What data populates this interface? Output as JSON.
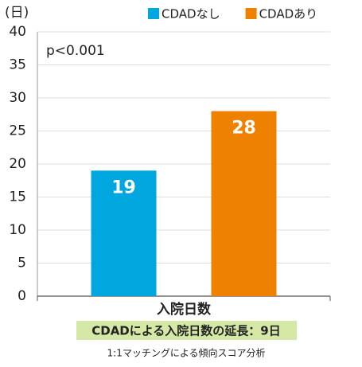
{
  "chart_data": {
    "type": "bar",
    "y_unit_label": "(日)",
    "annotation": "p<0.001",
    "categories": [
      "入院日数"
    ],
    "series": [
      {
        "name": "CDADなし",
        "color": "#00a7df",
        "values": [
          19
        ]
      },
      {
        "name": "CDADあり",
        "color": "#ee8100",
        "values": [
          28
        ]
      }
    ],
    "ylim": [
      0,
      40
    ],
    "yticks": [
      0,
      5,
      10,
      15,
      20,
      25,
      30,
      35,
      40
    ],
    "grid": true,
    "legend": "top-right",
    "subtitle": "CDADによる入院日数の延長：9日",
    "footnote": "1:1マッチングによる傾向スコア分析"
  }
}
